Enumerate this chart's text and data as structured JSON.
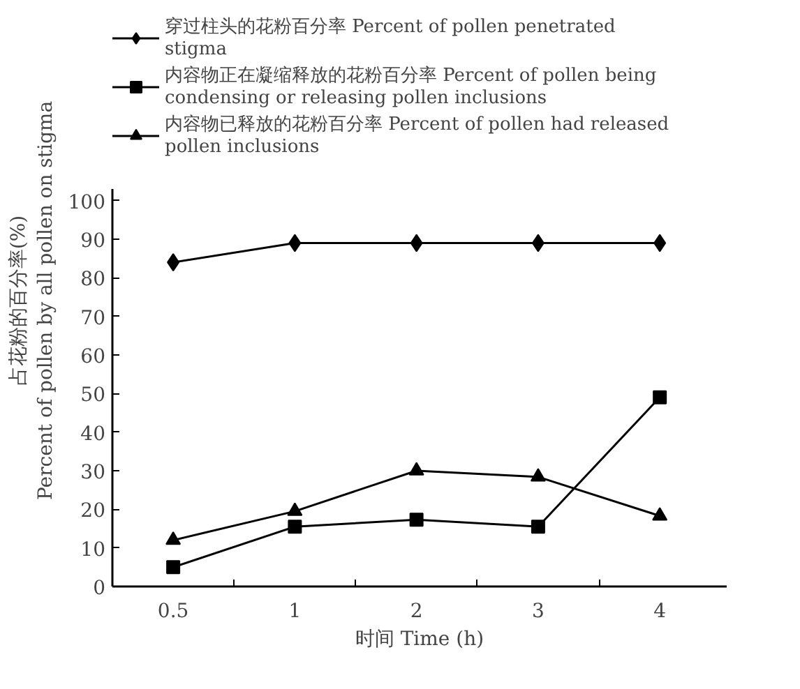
{
  "chart_data": {
    "type": "line",
    "xlabel": "时间 Time (h)",
    "ylabel": "占花粉的百分率(%)\nPercent of pollen by all pollen on stigma",
    "categories": [
      "0.5",
      "1",
      "2",
      "3",
      "4"
    ],
    "ylim": [
      0,
      103
    ],
    "yticks": [
      0,
      10,
      20,
      30,
      40,
      50,
      60,
      70,
      80,
      90,
      100
    ],
    "grid": false,
    "legend": "top",
    "line_style": "solid",
    "series": [
      {
        "name": "穿过柱头的花粉百分率 Percent of pollen penetrated stigma",
        "color": "#000000",
        "marker": "diamond",
        "values": [
          84,
          89,
          89,
          89,
          89
        ]
      },
      {
        "name": "内容物正在凝缩释放的花粉百分率 Percent of pollen being condensing or releasing pollen inclusions",
        "color": "#000000",
        "marker": "square",
        "values": [
          5,
          15.5,
          17.3,
          15.5,
          49
        ]
      },
      {
        "name": "内容物已释放的花粉百分率 Percent of pollen had released pollen inclusions",
        "color": "#000000",
        "marker": "triangle",
        "values": [
          12,
          19.5,
          30,
          28.4,
          18.3
        ]
      }
    ]
  }
}
